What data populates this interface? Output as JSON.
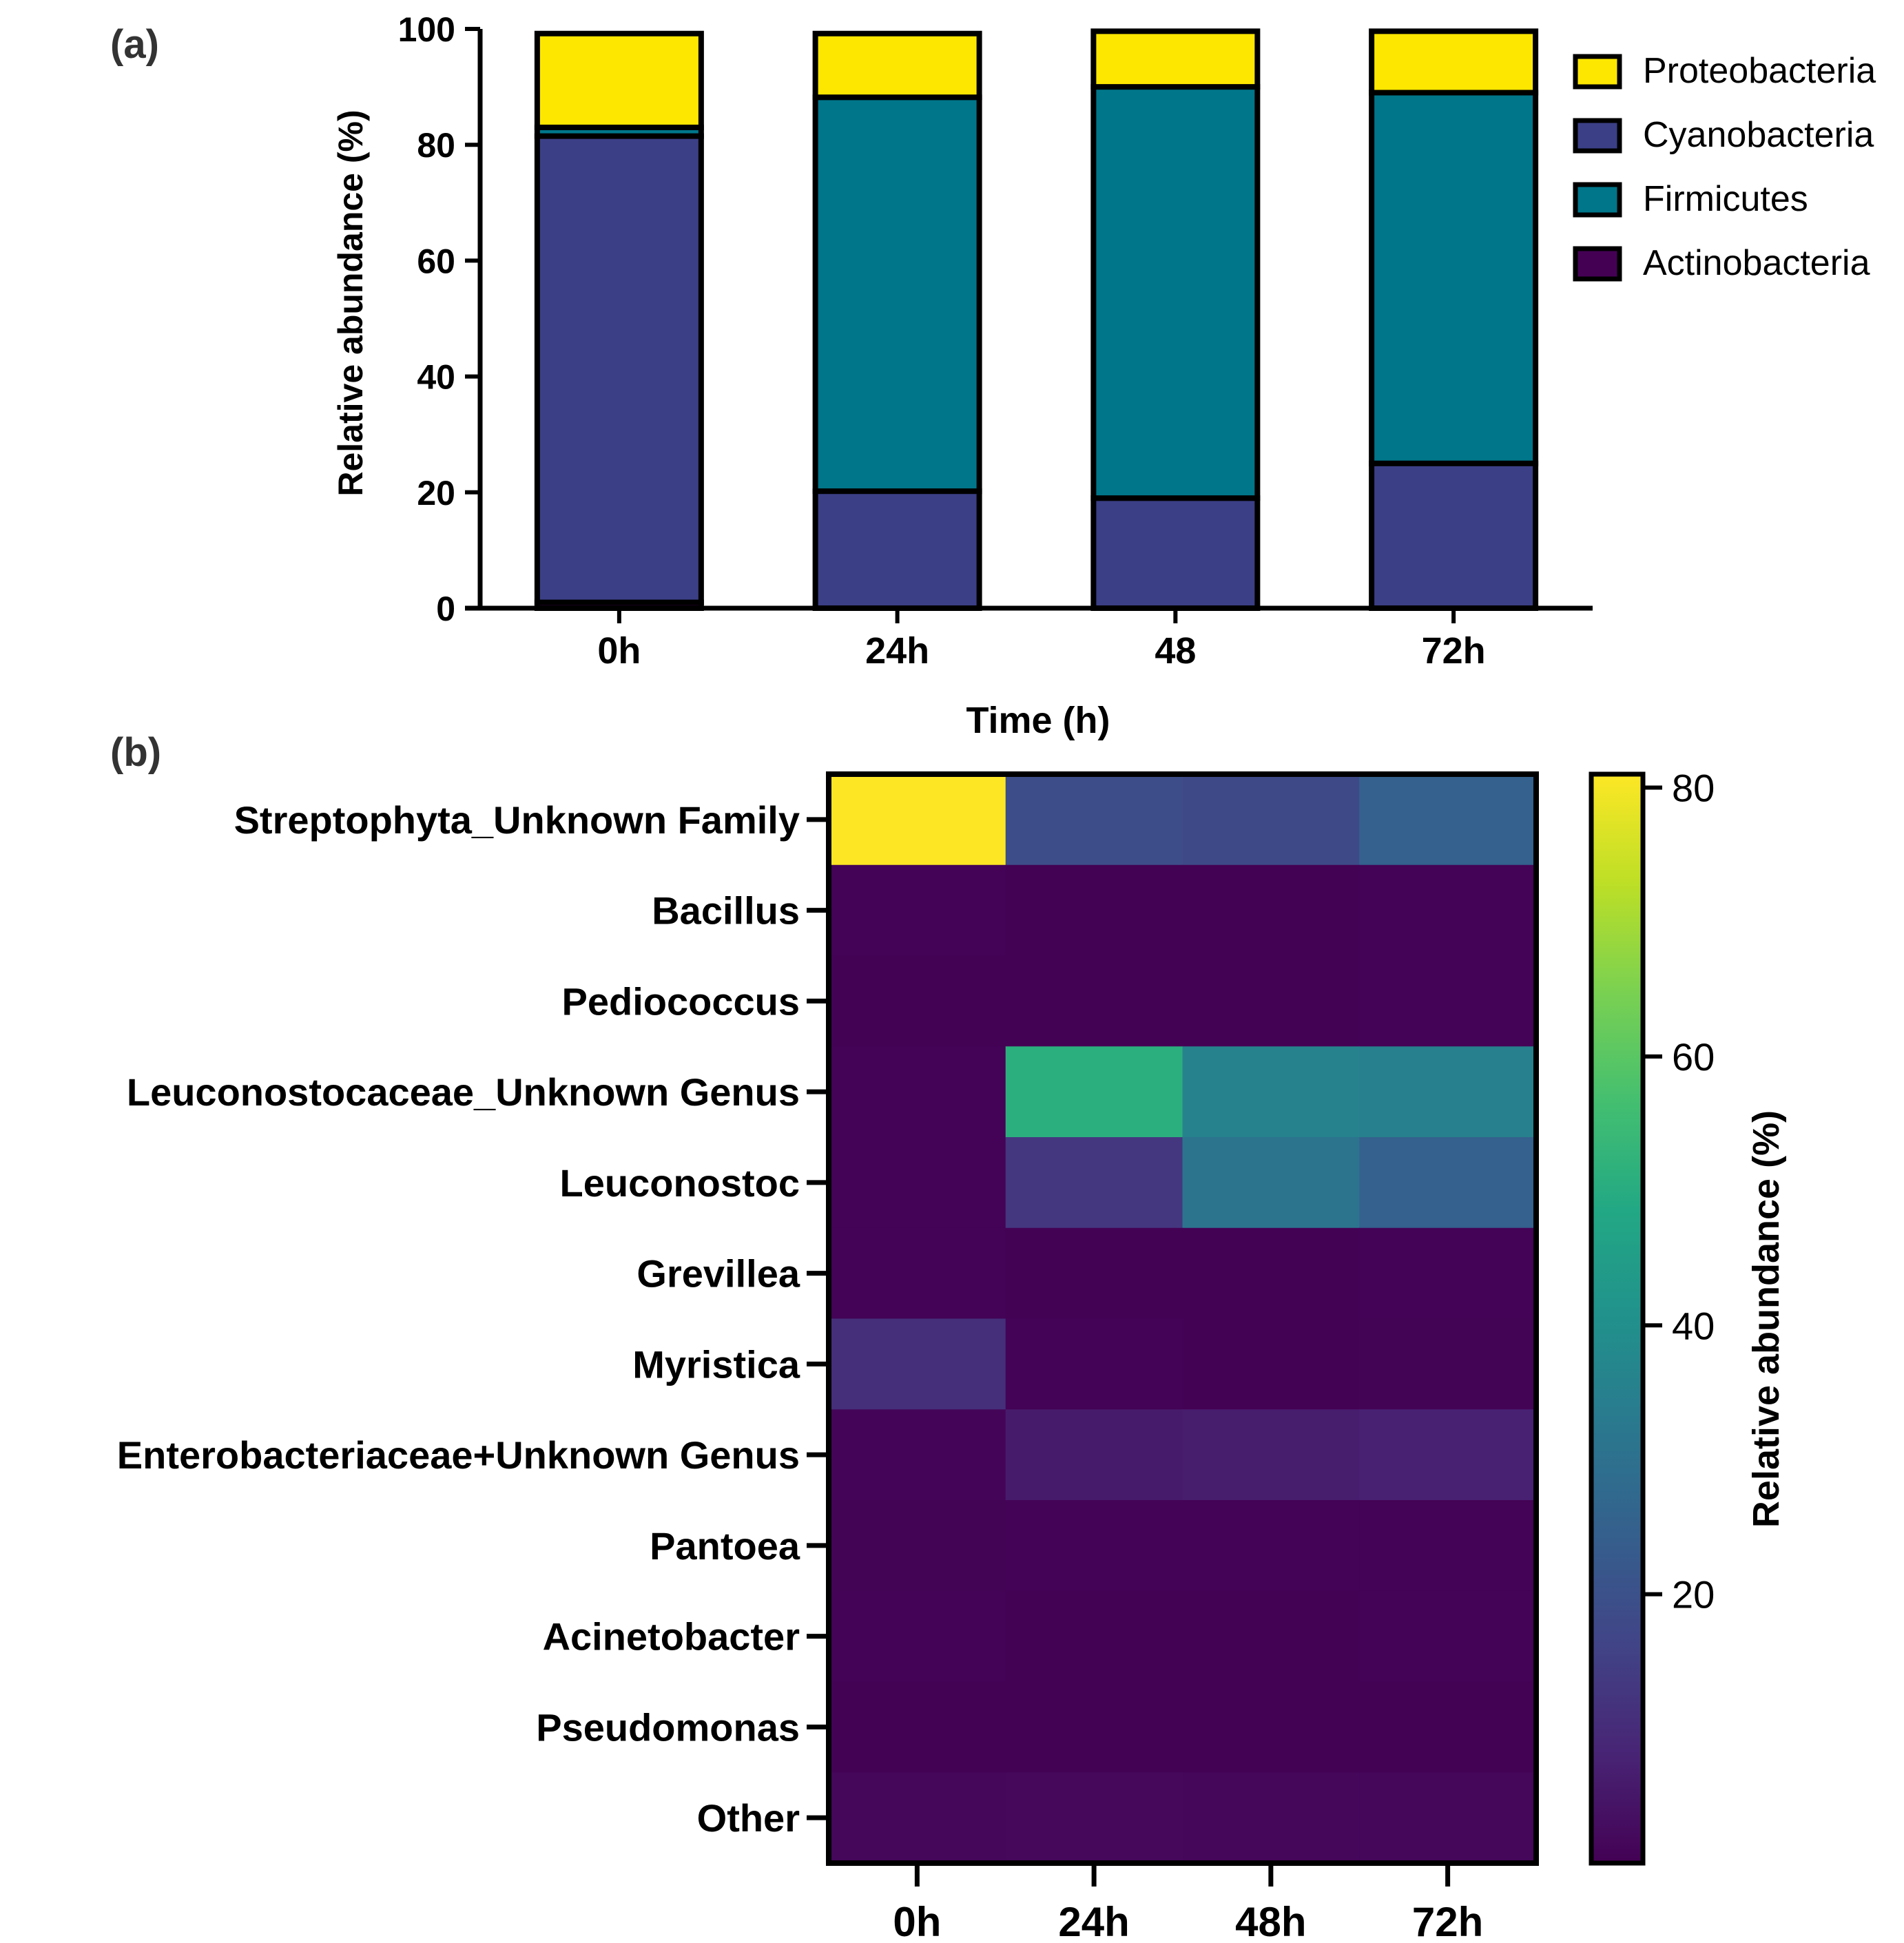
{
  "chart_data": [
    {
      "panel_label": "(a)",
      "type": "bar",
      "stacked": true,
      "title": "",
      "xlabel": "Time (h)",
      "ylabel": "Relative abundance (%)",
      "ylim": [
        0,
        100
      ],
      "yticks": [
        0,
        20,
        40,
        60,
        80,
        100
      ],
      "categories": [
        "0h",
        "24h",
        "48",
        "72h"
      ],
      "legend_position": "right",
      "series": [
        {
          "name": "Actinobacteria",
          "color": "#440154",
          "values": [
            1,
            0,
            0,
            0
          ]
        },
        {
          "name": "Cyanobacteria",
          "color": "#3b3f86",
          "values": [
            80.5,
            20.2,
            19,
            25
          ]
        },
        {
          "name": "Firmicutes",
          "color": "#00768a",
          "values": [
            1.5,
            68,
            71,
            64
          ]
        },
        {
          "name": "Proteobacteria",
          "color": "#fde700",
          "values": [
            16.2,
            11,
            9.6,
            10.6
          ]
        }
      ],
      "legend_order": [
        "Proteobacteria",
        "Cyanobacteria",
        "Firmicutes",
        "Actinobacteria"
      ]
    },
    {
      "panel_label": "(b)",
      "type": "heatmap",
      "title": "",
      "columns": [
        "0h",
        "24h",
        "48h",
        "72h"
      ],
      "rows": [
        "Streptophyta_Unknown Family",
        "Bacillus",
        "Pediococcus",
        "Leuconostocaceae_Unknown Genus",
        "Leuconostoc",
        "Grevillea",
        "Myristica",
        "Enterobacteriaceae+Unknown Genus",
        "Pantoea",
        "Acinetobacter",
        "Pseudomonas",
        "Other"
      ],
      "values": [
        [
          81,
          19,
          18,
          25
        ],
        [
          0.5,
          0.3,
          0.3,
          0.4
        ],
        [
          0.3,
          0.3,
          0.2,
          0.4
        ],
        [
          0.5,
          51,
          36,
          35
        ],
        [
          0.4,
          13,
          31,
          25
        ],
        [
          0.4,
          0.3,
          0.2,
          0.5
        ],
        [
          11,
          0.5,
          0.3,
          0.6
        ],
        [
          1,
          6,
          6.5,
          7.5
        ],
        [
          0.6,
          0.5,
          0.4,
          0.5
        ],
        [
          0.4,
          0.3,
          0.3,
          0.4
        ],
        [
          0.3,
          0.3,
          0.2,
          0.3
        ],
        [
          1.5,
          1.6,
          1.3,
          1.4
        ]
      ],
      "colorbar_label": "Relative abundance (%)",
      "colorbar_range": [
        0,
        81
      ],
      "colorbar_ticks": [
        20,
        40,
        60,
        80
      ],
      "colormap": "viridis"
    }
  ]
}
